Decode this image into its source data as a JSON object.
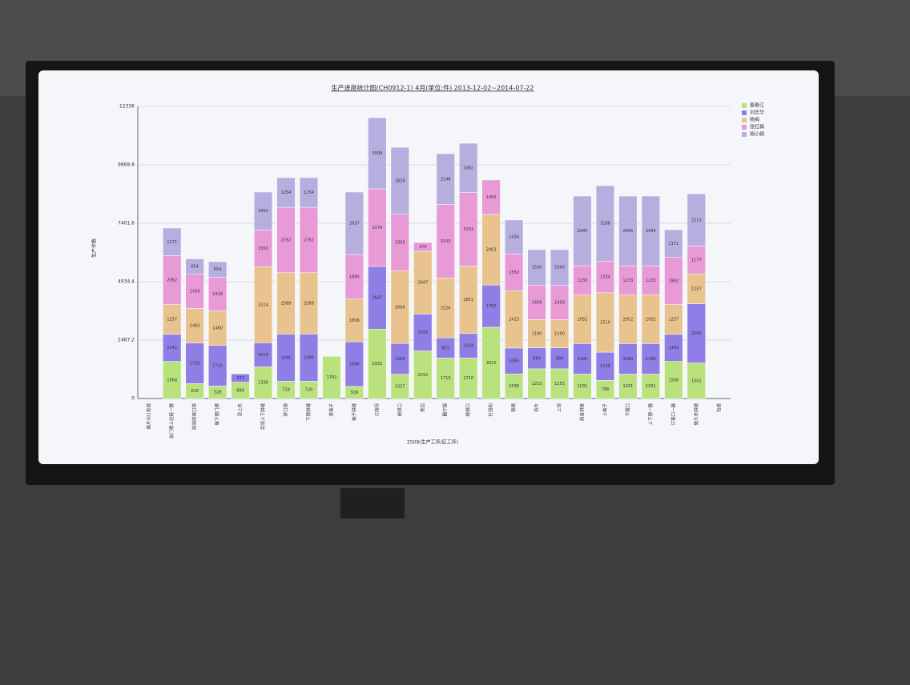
{
  "chart_data": {
    "type": "stacked_bar",
    "title": "生产进度统计图(CH0912-1) 4月(单位:件) 2013-12-02~2014-07-22",
    "x_label": "2509(生产工序/区工序)",
    "y_label": "生产件数",
    "categories": [
      "裁片001检验",
      "前门襟上拉链一器",
      "前领拼接口袋",
      "做下摆门襟",
      "烫上衣",
      "后领上下拼缝",
      "拼口袋",
      "下摆拼缝",
      "装袖子",
      "袖子拼缝",
      "订商标",
      "绱领口",
      "卷边",
      "翻下摆",
      "缝侧口",
      "钉纽扣",
      "锁眼",
      "后片",
      "上领",
      "前身拼接",
      "上袖子",
      "下摆口",
      "上下摆一器",
      "订袖口一器",
      "做大衣拼缝",
      "包装"
    ],
    "series": [
      {
        "name": "秦春江",
        "color": "#b9e27c",
        "values": [
          0,
          1568,
          628,
          528,
          689,
          1336,
          729,
          729,
          1782,
          509,
          2932,
          1027,
          2010,
          1710,
          1710,
          3010,
          1038,
          1253,
          1253,
          1031,
          768,
          1031,
          1031,
          1568,
          1501,
          0
        ]
      },
      {
        "name": "刘志华",
        "color": "#8f7ee6",
        "values": [
          0,
          1142,
          1720,
          1720,
          347,
          1018,
          1996,
          1996,
          0,
          1888,
          2647,
          1296,
          1559,
          853,
          1034,
          1782,
          1095,
          889,
          889,
          1289,
          1190,
          1289,
          1289,
          1142,
          2502,
          0
        ]
      },
      {
        "name": "杨梅",
        "color": "#e9c38d",
        "values": [
          0,
          1257,
          1460,
          1460,
          0,
          3214,
          2589,
          2589,
          0,
          1806,
          0,
          3066,
          2647,
          2526,
          2851,
          2983,
          2423,
          1190,
          1190,
          2052,
          2510,
          2052,
          2052,
          1257,
          1257,
          0
        ]
      },
      {
        "name": "张红梅",
        "color": "#e79ad6",
        "values": [
          0,
          2062,
          1438,
          1418,
          0,
          1550,
          2762,
          2762,
          0,
          1880,
          3274,
          2395,
          374,
          3103,
          3103,
          1455,
          1550,
          1458,
          1458,
          1233,
          1334,
          1233,
          1233,
          1992,
          1177,
          0
        ]
      },
      {
        "name": "胡小娟",
        "color": "#b6aede",
        "values": [
          0,
          1171,
          654,
          654,
          0,
          1602,
          1254,
          1254,
          0,
          2637,
          3008,
          2826,
          0,
          2148,
          2082,
          0,
          1434,
          1500,
          1500,
          2945,
          3188,
          2945,
          2945,
          1171,
          2213,
          0
        ]
      }
    ],
    "ylim": [
      0,
      12336
    ],
    "yticks": [
      0,
      2467.2,
      4934.4,
      7401.6,
      9868.8,
      12336
    ],
    "grid": true,
    "legend": "right"
  }
}
